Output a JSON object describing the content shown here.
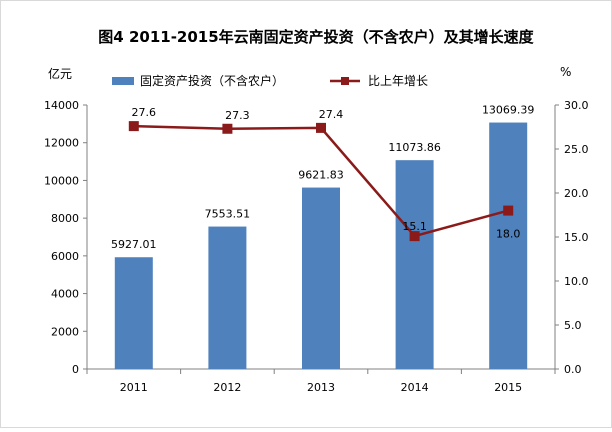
{
  "chart_data": {
    "type": "bar+line",
    "title": "图4    2011-2015年云南固定资产投资（不含农户）及其增长速度",
    "categories": [
      "2011",
      "2012",
      "2013",
      "2014",
      "2015"
    ],
    "left_axis": {
      "unit": "亿元",
      "ylim": [
        0,
        14000
      ],
      "ticks": [
        "0",
        "2000",
        "4000",
        "6000",
        "8000",
        "10000",
        "12000",
        "14000"
      ]
    },
    "right_axis": {
      "unit": "%",
      "ylim": [
        0,
        30
      ],
      "ticks": [
        "0.0",
        "5.0",
        "10.0",
        "15.0",
        "20.0",
        "25.0",
        "30.0"
      ]
    },
    "series": [
      {
        "name": "固定资产投资（不含农户）",
        "type": "bar",
        "axis": "left",
        "color": "#4f81bd",
        "values": [
          5927.01,
          7553.51,
          9621.83,
          11073.86,
          13069.39
        ],
        "labels": [
          "5927.01",
          "7553.51",
          "9621.83",
          "11073.86",
          "13069.39"
        ]
      },
      {
        "name": "比上年增长",
        "type": "line",
        "axis": "right",
        "color": "#8b1a1a",
        "values": [
          27.6,
          27.3,
          27.4,
          15.1,
          18.0
        ],
        "labels": [
          "27.6",
          "27.3",
          "27.4",
          "15.1",
          "18.0"
        ]
      }
    ],
    "legend": "top"
  }
}
